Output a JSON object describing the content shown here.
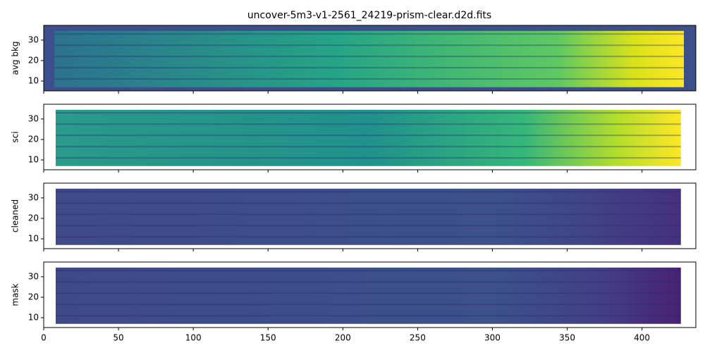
{
  "chart_data": [
    {
      "type": "image",
      "title": "uncover-5m3-v1-2561_24219-prism-clear.d2d.fits",
      "ylabel": "avg bkg",
      "xlim": [
        0,
        436
      ],
      "xticks": [
        0,
        50,
        100,
        150,
        200,
        250,
        300,
        350,
        400
      ],
      "ylim": [
        5.2,
        37.2
      ],
      "yticks": [
        10,
        20,
        30
      ]
    },
    {
      "type": "image",
      "ylabel": "sci",
      "xlim": [
        0,
        436
      ],
      "xticks": [
        0,
        50,
        100,
        150,
        200,
        250,
        300,
        350,
        400
      ],
      "ylim": [
        5.2,
        37.2
      ],
      "yticks": [
        10,
        20,
        30
      ]
    },
    {
      "type": "image",
      "ylabel": "cleaned",
      "xlim": [
        0,
        436
      ],
      "xticks": [
        0,
        50,
        100,
        150,
        200,
        250,
        300,
        350,
        400
      ],
      "ylim": [
        5.2,
        37.2
      ],
      "yticks": [
        10,
        20,
        30
      ]
    },
    {
      "type": "image",
      "ylabel": "mask",
      "xlim": [
        0,
        436
      ],
      "xticks": [
        0,
        50,
        100,
        150,
        200,
        250,
        300,
        350,
        400
      ],
      "ylim": [
        5.2,
        37.2
      ],
      "yticks": [
        10,
        20,
        30
      ],
      "xticklabels": true
    }
  ]
}
